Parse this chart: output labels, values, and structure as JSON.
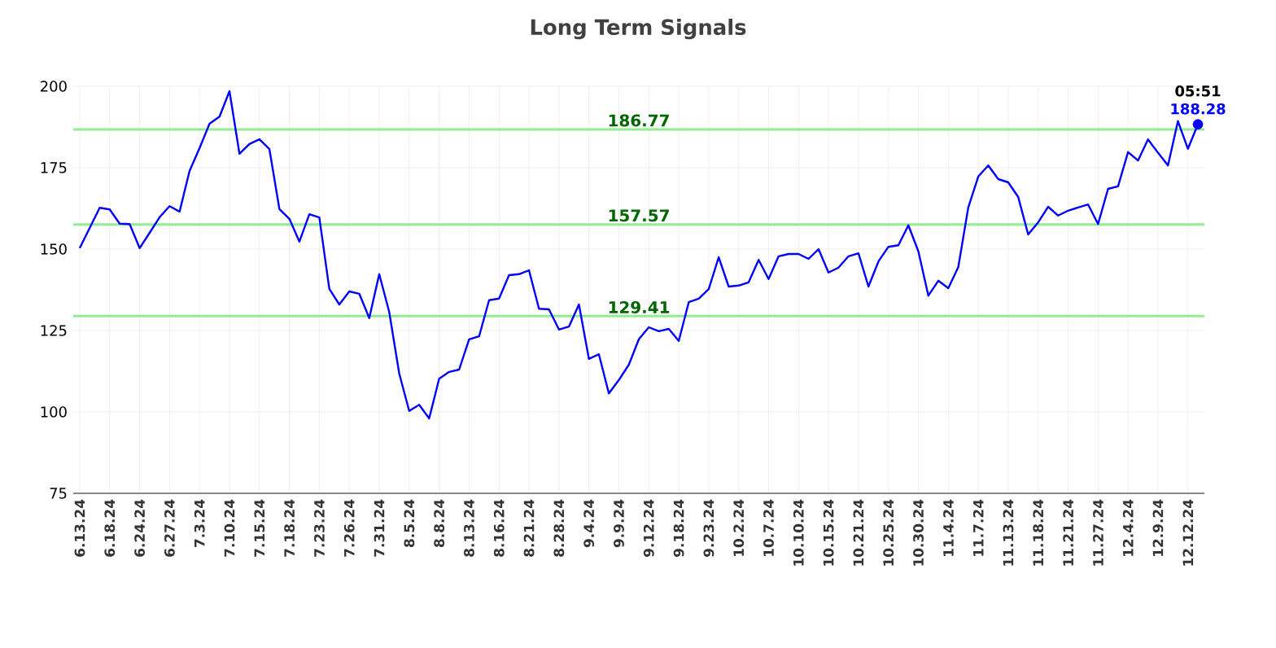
{
  "chart_data": {
    "type": "line",
    "title": "Long Term Signals",
    "categories": [
      "6.13.24",
      null,
      null,
      "6.18.24",
      null,
      null,
      "6.24.24",
      null,
      null,
      "6.27.24",
      null,
      null,
      "7.3.24",
      null,
      null,
      "7.10.24",
      null,
      null,
      "7.15.24",
      null,
      null,
      "7.18.24",
      null,
      null,
      "7.23.24",
      null,
      null,
      "7.26.24",
      null,
      null,
      "7.31.24",
      null,
      null,
      "8.5.24",
      null,
      null,
      "8.8.24",
      null,
      null,
      "8.13.24",
      null,
      null,
      "8.16.24",
      null,
      null,
      "8.21.24",
      null,
      null,
      "8.28.24",
      null,
      null,
      "9.4.24",
      null,
      null,
      "9.9.24",
      null,
      null,
      "9.12.24",
      null,
      null,
      "9.18.24",
      null,
      null,
      "9.23.24",
      null,
      null,
      "10.2.24",
      null,
      null,
      "10.7.24",
      null,
      null,
      "10.10.24",
      null,
      null,
      "10.15.24",
      null,
      null,
      "10.21.24",
      null,
      null,
      "10.25.24",
      null,
      null,
      "10.30.24",
      null,
      null,
      "11.4.24",
      null,
      null,
      "11.7.24",
      null,
      null,
      "11.13.24",
      null,
      null,
      "11.18.24",
      null,
      null,
      "11.21.24",
      null,
      null,
      "11.27.24",
      null,
      null,
      "12.4.24",
      null,
      null,
      "12.9.24",
      null,
      null,
      "12.12.24",
      null
    ],
    "series": [
      {
        "color": "#0000ff",
        "values": [
          150.3,
          156.5,
          162.7,
          162.2,
          157.8,
          157.7,
          150.3,
          155,
          159.8,
          163.2,
          161.5,
          174,
          181,
          188.5,
          190.7,
          198.5,
          179.3,
          182.3,
          183.7,
          180.7,
          162.3,
          159.3,
          152.3,
          160.7,
          159.7,
          137.8,
          133,
          137,
          136.3,
          128.8,
          142.3,
          130.7,
          111.8,
          100.3,
          102.2,
          98,
          110.2,
          112.3,
          113,
          122.3,
          123.2,
          134.3,
          134.8,
          142,
          142.3,
          143.5,
          131.7,
          131.5,
          125.3,
          126.2,
          133,
          116.3,
          117.7,
          105.7,
          109.8,
          114.5,
          122.3,
          126,
          124.8,
          125.5,
          121.8,
          133.7,
          134.8,
          137.7,
          147.5,
          138.5,
          138.8,
          139.8,
          146.7,
          140.8,
          147.8,
          148.5,
          148.5,
          147,
          150,
          142.8,
          144.3,
          147.8,
          148.7,
          138.5,
          146.2,
          150.7,
          151.2,
          157.3,
          149.3,
          135.7,
          140.3,
          138,
          144.5,
          162.8,
          172.3,
          175.7,
          171.5,
          170.5,
          166,
          154.5,
          158.2,
          163,
          160.3,
          161.8,
          162.8,
          163.7,
          157.7,
          168.5,
          169.3,
          179.8,
          177.2,
          183.7,
          179.6,
          175.7,
          189.3,
          180.8,
          188.3
        ]
      },
      {
        "type": "scatter",
        "color": "#0000ff",
        "values": [
          null,
          null,
          null,
          null,
          null,
          null,
          null,
          null,
          null,
          null,
          null,
          null,
          null,
          null,
          null,
          null,
          null,
          null,
          null,
          null,
          null,
          null,
          null,
          null,
          null,
          null,
          null,
          null,
          null,
          null,
          null,
          null,
          null,
          null,
          null,
          null,
          null,
          null,
          null,
          null,
          null,
          null,
          null,
          null,
          null,
          null,
          null,
          null,
          null,
          null,
          null,
          null,
          null,
          null,
          null,
          null,
          null,
          null,
          null,
          null,
          null,
          null,
          null,
          null,
          null,
          null,
          null,
          null,
          null,
          null,
          null,
          null,
          null,
          null,
          null,
          null,
          null,
          null,
          null,
          null,
          null,
          null,
          null,
          null,
          null,
          null,
          null,
          null,
          null,
          null,
          null,
          null,
          null,
          null,
          null,
          null,
          null,
          null,
          null,
          null,
          null,
          null,
          null,
          null,
          null,
          null,
          null,
          null,
          null,
          null,
          null,
          null,
          188.3
        ]
      }
    ],
    "ylim": [
      75,
      200
    ],
    "yticks": [
      75,
      100,
      125,
      150,
      175,
      200
    ],
    "grid": true,
    "line_style": "solid",
    "ref_lines": [
      {
        "axis": "y",
        "value": 186.77,
        "label": "186.77",
        "color": "#90ee90"
      },
      {
        "axis": "y",
        "value": 157.57,
        "label": "157.57",
        "color": "#90ee90"
      },
      {
        "axis": "y",
        "value": 129.41,
        "label": "129.41",
        "color": "#90ee90"
      }
    ],
    "annotations": [
      {
        "text": "05:51",
        "y": 188.28
      },
      {
        "text": "188.28",
        "y": 188.28
      }
    ]
  }
}
